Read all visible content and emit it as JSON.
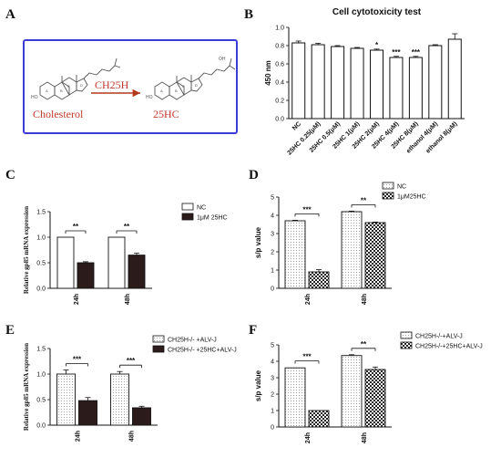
{
  "panel_letters": {
    "a": "A",
    "b": "B",
    "c": "C",
    "d": "D",
    "e": "E",
    "f": "F"
  },
  "scheme": {
    "enzyme": "CH25H",
    "substrate": "Cholesterol",
    "product": "25HC",
    "substrate_ring_labels": [
      "HO",
      "A",
      "B",
      "C",
      "D"
    ],
    "product_ring_labels": [
      "HO",
      "A",
      "B",
      "C",
      "D",
      "OH"
    ],
    "colors": {
      "border": "#3b3bd6",
      "arrow": "#b03a1a",
      "text": "#c0392b",
      "molecule": "#555555"
    }
  },
  "chart_data": [
    {
      "id": "B",
      "type": "bar",
      "title": "Cell cytotoxicity test",
      "ylabel": "450 nm",
      "ylim": [
        0.0,
        1.0
      ],
      "yticks": [
        "0.0",
        "0.2",
        "0.4",
        "0.6",
        "0.8",
        "1.0"
      ],
      "categories": [
        "NC",
        "25HC 0.25(μM)",
        "25HC 0.5(μM)",
        "25HC 1(μM)",
        "25HC 2(μM)",
        "25HC 4(μM)",
        "25HC 8(μM)",
        "ethanol 4(μM)",
        "ethanol 8(μM)"
      ],
      "values": [
        0.83,
        0.81,
        0.79,
        0.77,
        0.75,
        0.67,
        0.67,
        0.8,
        0.87
      ],
      "errors": [
        0.02,
        0.015,
        0.01,
        0.01,
        0.012,
        0.012,
        0.012,
        0.01,
        0.06
      ],
      "significance": [
        "",
        "",
        "",
        "",
        "*",
        "***",
        "***",
        "",
        ""
      ]
    },
    {
      "id": "C",
      "type": "bar",
      "ylabel": "Relative gp85 mRNA expression",
      "ylim": [
        0.0,
        1.5
      ],
      "yticks": [
        "0.0",
        "0.5",
        "1.0",
        "1.5"
      ],
      "categories": [
        "24h",
        "48h"
      ],
      "series": [
        {
          "name": "NC",
          "values": [
            1.0,
            1.0
          ],
          "errors": [
            0.0,
            0.0
          ],
          "fill": "white"
        },
        {
          "name": "1μM 25HC",
          "values": [
            0.5,
            0.65
          ],
          "errors": [
            0.02,
            0.04
          ],
          "fill": "dark"
        }
      ],
      "significance": [
        "**",
        "**"
      ]
    },
    {
      "id": "D",
      "type": "bar",
      "ylabel": "s/p value",
      "ylim": [
        0,
        5
      ],
      "yticks": [
        "0",
        "1",
        "2",
        "3",
        "4",
        "5"
      ],
      "categories": [
        "24h",
        "48h"
      ],
      "series": [
        {
          "name": "NC",
          "values": [
            3.7,
            4.2
          ],
          "errors": [
            0.03,
            0.03
          ],
          "fill": "dots"
        },
        {
          "name": "1μM25HC",
          "values": [
            0.9,
            3.6
          ],
          "errors": [
            0.12,
            0.03
          ],
          "fill": "check"
        }
      ],
      "significance": [
        "***",
        "**"
      ]
    },
    {
      "id": "E",
      "type": "bar",
      "ylabel": "Relative gp85 mRNA expression",
      "ylim": [
        0.0,
        1.5
      ],
      "yticks": [
        "0.0",
        "0.5",
        "1.0",
        "1.5"
      ],
      "categories": [
        "24h",
        "48h"
      ],
      "series": [
        {
          "name": "CH25H-/- +ALV-J",
          "values": [
            1.0,
            1.0
          ],
          "errors": [
            0.08,
            0.05
          ],
          "fill": "dots"
        },
        {
          "name": "CH25H-/- +25HC+ALV-J",
          "values": [
            0.48,
            0.34
          ],
          "errors": [
            0.06,
            0.03
          ],
          "fill": "dark"
        }
      ],
      "significance": [
        "***",
        "***"
      ]
    },
    {
      "id": "F",
      "type": "bar",
      "ylabel": "s/p value",
      "ylim": [
        0,
        5
      ],
      "yticks": [
        "0",
        "1",
        "2",
        "3",
        "4",
        "5"
      ],
      "categories": [
        "24h",
        "48h"
      ],
      "series": [
        {
          "name": "CH25H-/-+ALV-J",
          "values": [
            3.6,
            4.35
          ],
          "errors": [
            0.03,
            0.05
          ],
          "fill": "dots"
        },
        {
          "name": "CH25H-/-+25HC+ALV-J",
          "values": [
            1.0,
            3.5
          ],
          "errors": [
            0.03,
            0.15
          ],
          "fill": "check"
        }
      ],
      "significance": [
        "***",
        "**"
      ]
    }
  ]
}
